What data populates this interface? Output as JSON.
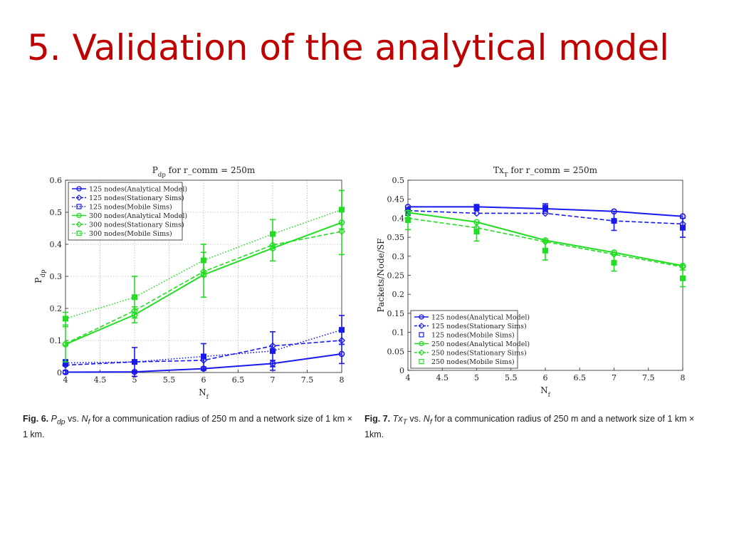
{
  "slide": {
    "title": "5. Validation of the analytical model"
  },
  "captions": [
    {
      "label": "Fig. 6.",
      "text": "P_dp vs. N_f for a communication radius of 250 m and a network size of 1 km × 1 km."
    },
    {
      "label": "Fig. 7.",
      "text": "Tx_T vs. N_f for a communication radius of 250 m and a network size of 1 km × 1km."
    }
  ],
  "colors": {
    "blue": "#1a1aee",
    "green": "#22dd22",
    "title": "#c00000"
  },
  "chart_data": [
    {
      "type": "line",
      "title": "P_dp for r_comm = 250m",
      "xlabel": "N_f",
      "ylabel": "P_dp",
      "xlim": [
        4,
        8
      ],
      "ylim": [
        0,
        0.6
      ],
      "xticks": [
        "4",
        "4.5",
        "5",
        "5.5",
        "6",
        "6.5",
        "7",
        "7.5",
        "8"
      ],
      "yticks": [
        "0",
        "0.1",
        "0.2",
        "0.3",
        "0.4",
        "0.5",
        "0.6"
      ],
      "grid": true,
      "legend": "top-left",
      "x": [
        4,
        5,
        6,
        7,
        8
      ],
      "series": [
        {
          "name": "125 nodes(Analytical Model)",
          "color": "#1a1aee",
          "style": "solid",
          "marker": "circle",
          "values": [
            0.001,
            0.002,
            0.012,
            0.028,
            0.058
          ],
          "err": [
            0.005,
            0.003,
            0.005,
            0.01,
            0.03
          ]
        },
        {
          "name": "125 nodes(Stationary Sims)",
          "color": "#1a1aee",
          "style": "dashed",
          "marker": "diamond",
          "values": [
            0.023,
            0.033,
            0.038,
            0.083,
            0.1
          ],
          "err": [
            0,
            0,
            0,
            0,
            0
          ]
        },
        {
          "name": "125 nodes(Mobile Sims)",
          "color": "#1a1aee",
          "style": "dotted",
          "marker": "square",
          "values": [
            0.03,
            0.033,
            0.05,
            0.067,
            0.133
          ],
          "err": [
            0.01,
            0.045,
            0.04,
            0.06,
            0.045
          ]
        },
        {
          "name": "300 nodes(Analytical Model)",
          "color": "#22dd22",
          "style": "solid",
          "marker": "circle",
          "values": [
            0.088,
            0.18,
            0.305,
            0.388,
            0.468
          ],
          "err": [
            0.055,
            0.025,
            0.07,
            0.04,
            0.1
          ]
        },
        {
          "name": "300 nodes(Stationary Sims)",
          "color": "#22dd22",
          "style": "dashed",
          "marker": "diamond",
          "values": [
            0.09,
            0.193,
            0.315,
            0.398,
            0.44
          ],
          "err": [
            0,
            0,
            0,
            0,
            0
          ]
        },
        {
          "name": "300 nodes(Mobile Sims)",
          "color": "#22dd22",
          "style": "dotted",
          "marker": "square",
          "values": [
            0.168,
            0.235,
            0.35,
            0.432,
            0.508
          ],
          "err": [
            0.02,
            0.065,
            0.05,
            0.045,
            0.06
          ]
        }
      ]
    },
    {
      "type": "line",
      "title": "Tx_T for r_comm = 250m",
      "xlabel": "N_f",
      "ylabel": "Packets/Node/SF",
      "xlim": [
        4,
        8
      ],
      "ylim": [
        0,
        0.5
      ],
      "xticks": [
        "4",
        "4.5",
        "5",
        "5.5",
        "6",
        "6.5",
        "7",
        "7.5",
        "8"
      ],
      "yticks": [
        "0",
        "0.05",
        "0.1",
        "0.15",
        "0.2",
        "0.25",
        "0.3",
        "0.35",
        "0.4",
        "0.45",
        "0.5"
      ],
      "grid": false,
      "legend": "bottom-left",
      "x": [
        4,
        5,
        6,
        7,
        8
      ],
      "series": [
        {
          "name": "125 nodes(Analytical Model)",
          "color": "#1a1aee",
          "style": "solid",
          "marker": "circle",
          "values": [
            0.43,
            0.43,
            0.425,
            0.418,
            0.405
          ],
          "err": [
            0,
            0,
            0,
            0,
            0
          ]
        },
        {
          "name": "125 nodes(Stationary Sims)",
          "color": "#1a1aee",
          "style": "dashed",
          "marker": "diamond",
          "values": [
            0.42,
            0.413,
            0.413,
            0.393,
            0.385
          ],
          "err": [
            0,
            0,
            0,
            0,
            0
          ]
        },
        {
          "name": "125 nodes(Mobile Sims)",
          "color": "#1a1aee",
          "style": "none",
          "marker": "square",
          "values": [
            0.418,
            0.428,
            0.428,
            0.393,
            0.375
          ],
          "err": [
            0.01,
            0.008,
            0.01,
            0.025,
            0.025
          ]
        },
        {
          "name": "250 nodes(Analytical Model)",
          "color": "#22dd22",
          "style": "solid",
          "marker": "circle",
          "values": [
            0.415,
            0.39,
            0.342,
            0.31,
            0.275
          ],
          "err": [
            0,
            0,
            0,
            0,
            0
          ]
        },
        {
          "name": "250 nodes(Stationary Sims)",
          "color": "#22dd22",
          "style": "dashed",
          "marker": "diamond",
          "values": [
            0.4,
            0.375,
            0.338,
            0.305,
            0.272
          ],
          "err": [
            0,
            0,
            0,
            0,
            0
          ]
        },
        {
          "name": "250 nodes(Mobile Sims)",
          "color": "#22dd22",
          "style": "none",
          "marker": "square",
          "values": [
            0.395,
            0.365,
            0.315,
            0.283,
            0.242
          ],
          "err": [
            0.025,
            0.025,
            0.025,
            0.022,
            0.022
          ]
        }
      ]
    }
  ]
}
